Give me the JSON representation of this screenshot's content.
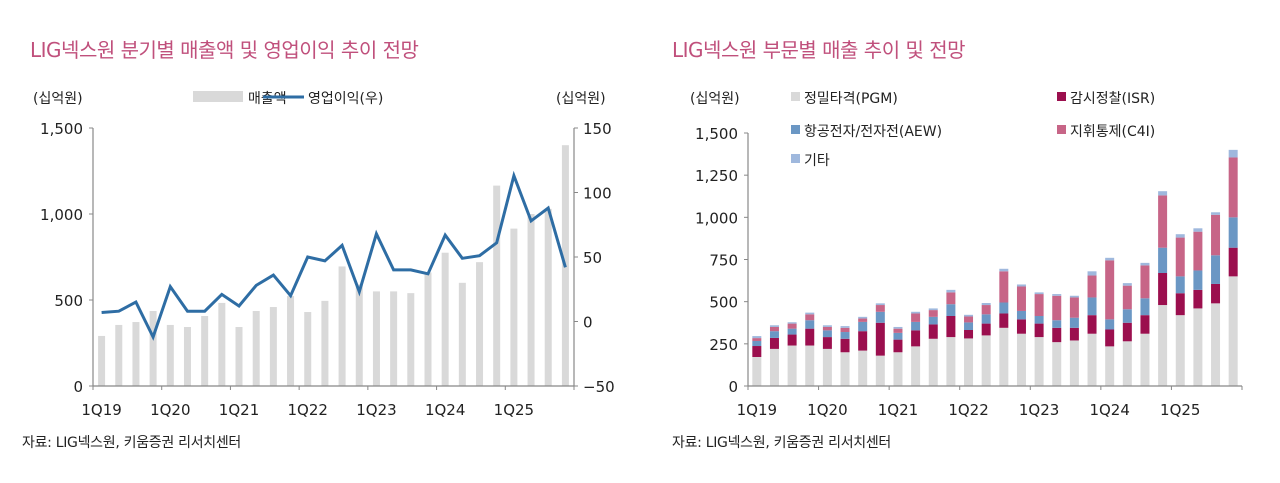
{
  "left": {
    "title": "LIG넥스원 분기별 매출액 및 영업이익 추이 전망",
    "source": "자료: LIG넥스원, 키움증권 리서치센터"
  },
  "right": {
    "title": "LIG넥스원 부문별 매출 추이 및 전망",
    "source": "자료: LIG넥스원, 키움증권 리서치센터"
  },
  "chart_data": [
    {
      "type": "bar+line",
      "title": "LIG넥스원 분기별 매출액 및 영업이익 추이 전망",
      "ylabel_left": "(십억원)",
      "ylabel_right": "(십억원)",
      "ylim_left": [
        0,
        1500
      ],
      "yticks_left": [
        "0",
        "500",
        "1,000",
        "1,500"
      ],
      "yticks_left_values": [
        0,
        500,
        1000,
        1500
      ],
      "ylim_right": [
        -50,
        150
      ],
      "yticks_right": [
        "-50",
        "0",
        "50",
        "100",
        "150"
      ],
      "yticks_right_values": [
        -50,
        0,
        50,
        100,
        150
      ],
      "xtick_labels": [
        "1Q19",
        "1Q20",
        "1Q21",
        "1Q22",
        "1Q23",
        "1Q24",
        "1Q25"
      ],
      "xtick_indices": [
        0,
        4,
        8,
        12,
        16,
        20,
        24
      ],
      "legend_position": "top-center",
      "grid": false,
      "categories": [
        "1Q19",
        "2Q19",
        "3Q19",
        "4Q19",
        "1Q20",
        "2Q20",
        "3Q20",
        "4Q20",
        "1Q21",
        "2Q21",
        "3Q21",
        "4Q21",
        "1Q22",
        "2Q22",
        "3Q22",
        "4Q22",
        "1Q23",
        "2Q23",
        "3Q23",
        "4Q23",
        "1Q24",
        "2Q24",
        "3Q24",
        "4Q24",
        "1Q25",
        "2Q25",
        "3Q25",
        "4Q25"
      ],
      "series": [
        {
          "name": "매출액",
          "type": "bar",
          "axis": "left",
          "color": "#d9d9d9",
          "values": [
            291,
            355,
            372,
            436,
            355,
            343,
            407,
            483,
            343,
            436,
            459,
            523,
            430,
            495,
            695,
            590,
            550,
            550,
            540,
            660,
            775,
            600,
            720,
            1165,
            915,
            1000,
            1030,
            1400
          ]
        },
        {
          "name": "영업이익(우)",
          "type": "line",
          "axis": "right",
          "color": "#2e6da4",
          "values": [
            7,
            8,
            15,
            -12,
            27,
            8,
            8,
            21,
            12,
            28,
            36,
            20,
            50,
            47,
            59,
            23,
            68,
            40,
            40,
            37,
            67,
            49,
            51,
            61,
            113,
            78,
            88,
            42
          ]
        }
      ]
    },
    {
      "type": "bar",
      "stacked": true,
      "title": "LIG넥스원 부문별 매출 추이 및 전망",
      "ylabel": "(십억원)",
      "ylim": [
        0,
        1500
      ],
      "yticks": [
        "0",
        "250",
        "500",
        "750",
        "1,000",
        "1,250",
        "1,500"
      ],
      "yticks_values": [
        0,
        250,
        500,
        750,
        1000,
        1250,
        1500
      ],
      "xtick_labels": [
        "1Q19",
        "1Q20",
        "1Q21",
        "1Q22",
        "1Q23",
        "1Q24",
        "1Q25"
      ],
      "xtick_indices": [
        0,
        4,
        8,
        12,
        16,
        20,
        24
      ],
      "legend_position": "top",
      "grid": false,
      "categories": [
        "1Q19",
        "2Q19",
        "3Q19",
        "4Q19",
        "1Q20",
        "2Q20",
        "3Q20",
        "4Q20",
        "1Q21",
        "2Q21",
        "3Q21",
        "4Q21",
        "1Q22",
        "2Q22",
        "3Q22",
        "4Q22",
        "1Q23",
        "2Q23",
        "3Q23",
        "4Q23",
        "1Q24",
        "2Q24",
        "3Q24",
        "4Q24",
        "1Q25",
        "2Q25",
        "3Q25",
        "4Q25"
      ],
      "series": [
        {
          "name": "정밀타격(PGM)",
          "color": "#d9d9d9",
          "values": [
            172,
            220,
            240,
            240,
            220,
            200,
            210,
            180,
            200,
            235,
            280,
            290,
            282,
            300,
            345,
            310,
            290,
            260,
            270,
            310,
            235,
            265,
            310,
            480,
            420,
            460,
            490,
            650
          ]
        },
        {
          "name": "감시정찰(ISR)",
          "color": "#9b0f4e",
          "values": [
            65,
            65,
            65,
            100,
            70,
            80,
            115,
            195,
            75,
            95,
            85,
            125,
            50,
            70,
            85,
            85,
            80,
            85,
            75,
            110,
            100,
            110,
            110,
            190,
            130,
            110,
            115,
            170
          ]
        },
        {
          "name": "항공전자/전자전(AEW)",
          "color": "#6b97c4",
          "values": [
            30,
            40,
            35,
            50,
            40,
            40,
            55,
            65,
            40,
            50,
            45,
            70,
            45,
            55,
            65,
            50,
            45,
            45,
            60,
            105,
            60,
            80,
            100,
            150,
            100,
            115,
            170,
            180
          ]
        },
        {
          "name": "지휘통제(C4I)",
          "color": "#c76587",
          "values": [
            17,
            25,
            30,
            35,
            20,
            25,
            20,
            40,
            25,
            50,
            40,
            70,
            35,
            55,
            185,
            145,
            130,
            145,
            120,
            130,
            350,
            140,
            195,
            310,
            230,
            230,
            240,
            355
          ]
        },
        {
          "name": "기타",
          "color": "#9fb8dd",
          "values": [
            12,
            10,
            8,
            10,
            10,
            10,
            10,
            10,
            10,
            10,
            10,
            15,
            10,
            12,
            15,
            12,
            10,
            10,
            10,
            25,
            15,
            15,
            15,
            25,
            20,
            20,
            15,
            45
          ]
        }
      ],
      "legend_order": [
        "정밀타격(PGM)",
        "감시정찰(ISR)",
        "항공전자/전자전(AEW)",
        "지휘통제(C4I)",
        "기타"
      ]
    }
  ]
}
